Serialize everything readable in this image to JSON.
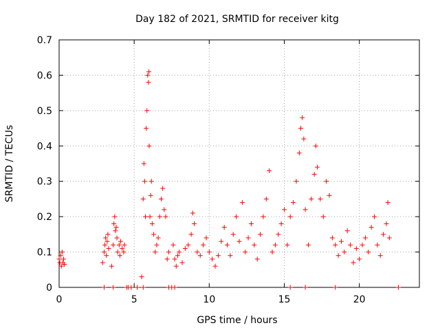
{
  "chart_data": {
    "type": "scatter",
    "title": "Day 182 of 2021, SRMTID for receiver kitg",
    "xlabel": "GPS time / hours",
    "ylabel": "SRMTID / TECUs",
    "xlim": [
      0,
      24
    ],
    "ylim": [
      0,
      0.7
    ],
    "x_ticks": [
      0,
      5,
      10,
      15,
      20
    ],
    "y_ticks": [
      0,
      0.1,
      0.2,
      0.3,
      0.4,
      0.5,
      0.6,
      0.7
    ],
    "x_tick_labels": [
      "0",
      "5",
      "10",
      "15",
      "20"
    ],
    "y_tick_labels": [
      "0",
      "0.1",
      "0.2",
      "0.3",
      "0.4",
      "0.5",
      "0.6",
      "0.7"
    ],
    "grid": true,
    "marker": "+",
    "color": "#ff0000",
    "series": [
      {
        "name": "SRMTID",
        "points": [
          [
            0.0,
            0.08
          ],
          [
            0.05,
            0.07
          ],
          [
            0.1,
            0.09
          ],
          [
            0.15,
            0.06
          ],
          [
            0.2,
            0.1
          ],
          [
            0.25,
            0.07
          ],
          [
            0.3,
            0.08
          ],
          [
            0.35,
            0.065
          ],
          [
            2.9,
            0.07
          ],
          [
            3.0,
            0.1
          ],
          [
            3.05,
            0.12
          ],
          [
            3.1,
            0.14
          ],
          [
            3.15,
            0.09
          ],
          [
            3.2,
            0.13
          ],
          [
            3.25,
            0.15
          ],
          [
            3.3,
            0.11
          ],
          [
            3.5,
            0.06
          ],
          [
            3.6,
            0.12
          ],
          [
            3.65,
            0.18
          ],
          [
            3.7,
            0.2
          ],
          [
            3.75,
            0.16
          ],
          [
            3.8,
            0.17
          ],
          [
            3.85,
            0.14
          ],
          [
            3.9,
            0.1
          ],
          [
            4.0,
            0.12
          ],
          [
            4.05,
            0.09
          ],
          [
            4.1,
            0.13
          ],
          [
            4.2,
            0.11
          ],
          [
            4.3,
            0.1
          ],
          [
            4.35,
            0.12
          ],
          [
            5.5,
            0.03
          ],
          [
            5.6,
            0.25
          ],
          [
            5.65,
            0.35
          ],
          [
            5.7,
            0.3
          ],
          [
            5.75,
            0.2
          ],
          [
            5.8,
            0.45
          ],
          [
            5.85,
            0.5
          ],
          [
            5.9,
            0.6
          ],
          [
            5.95,
            0.58
          ],
          [
            5.98,
            0.61
          ],
          [
            6.0,
            0.4
          ],
          [
            6.05,
            0.2
          ],
          [
            6.1,
            0.26
          ],
          [
            6.15,
            0.3
          ],
          [
            6.2,
            0.18
          ],
          [
            6.3,
            0.15
          ],
          [
            6.4,
            0.1
          ],
          [
            6.5,
            0.12
          ],
          [
            6.6,
            0.14
          ],
          [
            6.7,
            0.2
          ],
          [
            6.8,
            0.25
          ],
          [
            6.9,
            0.28
          ],
          [
            7.0,
            0.22
          ],
          [
            7.1,
            0.2
          ],
          [
            7.2,
            0.08
          ],
          [
            7.3,
            0.1
          ],
          [
            7.6,
            0.12
          ],
          [
            7.7,
            0.08
          ],
          [
            7.8,
            0.06
          ],
          [
            7.9,
            0.09
          ],
          [
            8.0,
            0.1
          ],
          [
            8.2,
            0.07
          ],
          [
            8.4,
            0.11
          ],
          [
            8.6,
            0.12
          ],
          [
            8.8,
            0.15
          ],
          [
            8.9,
            0.21
          ],
          [
            9.0,
            0.18
          ],
          [
            9.2,
            0.1
          ],
          [
            9.4,
            0.09
          ],
          [
            9.6,
            0.12
          ],
          [
            9.8,
            0.14
          ],
          [
            10.0,
            0.1
          ],
          [
            10.2,
            0.08
          ],
          [
            10.4,
            0.06
          ],
          [
            10.6,
            0.09
          ],
          [
            10.8,
            0.13
          ],
          [
            11.0,
            0.17
          ],
          [
            11.2,
            0.12
          ],
          [
            11.4,
            0.09
          ],
          [
            11.6,
            0.15
          ],
          [
            11.8,
            0.2
          ],
          [
            12.0,
            0.13
          ],
          [
            12.2,
            0.24
          ],
          [
            12.4,
            0.1
          ],
          [
            12.6,
            0.14
          ],
          [
            12.8,
            0.18
          ],
          [
            13.0,
            0.12
          ],
          [
            13.2,
            0.08
          ],
          [
            13.4,
            0.15
          ],
          [
            13.6,
            0.2
          ],
          [
            13.8,
            0.25
          ],
          [
            14.0,
            0.33
          ],
          [
            14.2,
            0.1
          ],
          [
            14.4,
            0.12
          ],
          [
            14.6,
            0.15
          ],
          [
            14.8,
            0.18
          ],
          [
            15.0,
            0.22
          ],
          [
            15.2,
            0.12
          ],
          [
            15.4,
            0.2
          ],
          [
            15.6,
            0.24
          ],
          [
            15.8,
            0.3
          ],
          [
            16.0,
            0.38
          ],
          [
            16.1,
            0.45
          ],
          [
            16.2,
            0.48
          ],
          [
            16.3,
            0.42
          ],
          [
            16.4,
            0.22
          ],
          [
            16.6,
            0.12
          ],
          [
            16.8,
            0.25
          ],
          [
            17.0,
            0.32
          ],
          [
            17.1,
            0.4
          ],
          [
            17.2,
            0.34
          ],
          [
            17.4,
            0.25
          ],
          [
            17.6,
            0.2
          ],
          [
            17.8,
            0.3
          ],
          [
            18.0,
            0.26
          ],
          [
            18.2,
            0.14
          ],
          [
            18.4,
            0.12
          ],
          [
            18.6,
            0.09
          ],
          [
            18.8,
            0.13
          ],
          [
            19.0,
            0.1
          ],
          [
            19.2,
            0.16
          ],
          [
            19.4,
            0.12
          ],
          [
            19.6,
            0.07
          ],
          [
            19.8,
            0.11
          ],
          [
            20.0,
            0.08
          ],
          [
            20.2,
            0.12
          ],
          [
            20.4,
            0.14
          ],
          [
            20.6,
            0.1
          ],
          [
            20.8,
            0.17
          ],
          [
            21.0,
            0.2
          ],
          [
            21.2,
            0.12
          ],
          [
            21.4,
            0.09
          ],
          [
            21.6,
            0.15
          ],
          [
            21.8,
            0.18
          ],
          [
            21.9,
            0.24
          ],
          [
            22.0,
            0.14
          ]
        ]
      }
    ],
    "zero_values_x": [
      3.0,
      3.6,
      4.5,
      4.6,
      4.8,
      5.2,
      5.6,
      7.3,
      7.5,
      7.7,
      15.4,
      16.4,
      18.4,
      22.6
    ]
  }
}
